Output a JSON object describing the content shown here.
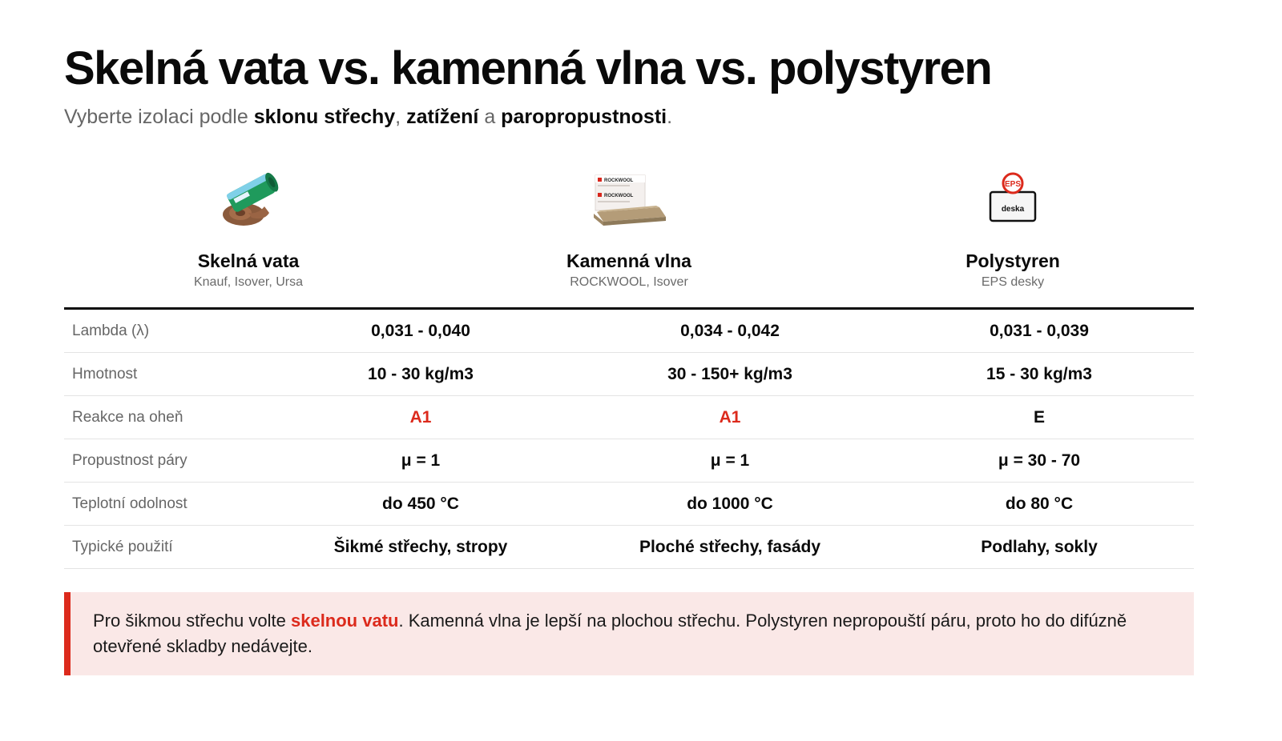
{
  "header": {
    "title": "Skelná vata vs. kamenná vlna vs. polystyren",
    "subtitle_pre": "Vyberte izolaci podle ",
    "subtitle_b1": "sklonu střechy",
    "subtitle_sep1": ", ",
    "subtitle_b2": "zatížení",
    "subtitle_sep2": " a ",
    "subtitle_b3": "paropropustnosti",
    "subtitle_end": "."
  },
  "products": [
    {
      "name": "Skelná vata",
      "brands": "Knauf, Isover, Ursa",
      "icon": "glass-wool-roll-icon"
    },
    {
      "name": "Kamenná vlna",
      "brands": "ROCKWOOL, Isover",
      "icon": "stone-wool-slabs-icon",
      "pack_label": "ROCKWOOL"
    },
    {
      "name": "Polystyren",
      "brands": "EPS desky",
      "icon": "eps-board-icon",
      "badge": "EPS",
      "board_label": "deska"
    }
  ],
  "table": {
    "rows": [
      {
        "label": "Lambda (λ)",
        "values": [
          "0,031 - 0,040",
          "0,034 - 0,042",
          "0,031 - 0,039"
        ]
      },
      {
        "label": "Hmotnost",
        "values": [
          "10 - 30 kg/m3",
          "30 - 150+ kg/m3",
          "15 - 30 kg/m3"
        ]
      },
      {
        "label": "Reakce na oheň",
        "values": [
          "A1",
          "A1",
          "E"
        ]
      },
      {
        "label": "Propustnost páry",
        "values": [
          "μ = 1",
          "μ = 1",
          "μ = 30 - 70"
        ]
      },
      {
        "label": "Teplotní odolnost",
        "values": [
          "do 450 °C",
          "do 1000 °C",
          "do 80 °C"
        ]
      },
      {
        "label": "Typické použití",
        "values": [
          "Šikmé střechy, stropy",
          "Ploché střechy, fasády",
          "Podlahy, sokly"
        ]
      }
    ]
  },
  "note": {
    "pre": "Pro šikmou střechu volte ",
    "highlight": "skelnou vatu",
    "post": ". Kamenná vlna je lepší na plochou střechu. Polystyren nepropouští páru, proto ho do difúzně otevřené skladby nedávejte."
  },
  "colors": {
    "accent": "#dc2a1c",
    "note_bg": "#fae8e7",
    "text": "#0a0a0a",
    "muted": "#666666"
  }
}
